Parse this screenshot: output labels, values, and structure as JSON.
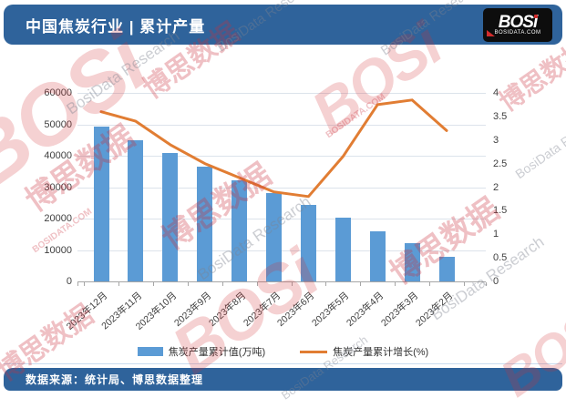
{
  "header": {
    "title": "中国焦炭行业 | 累计产量",
    "logo": {
      "text": "BOSi",
      "site": "BOSIDATA.COM"
    }
  },
  "footer": {
    "source": "数据来源：统计局、博思数据整理"
  },
  "watermarks": {
    "cn": "博思数据",
    "en": "BosiData Research",
    "logo": "BOSi",
    "site": "BOSIDATA.COM"
  },
  "chart_data": {
    "type": "bar",
    "title": "中国焦炭行业 | 累计产量",
    "categories": [
      "2023年12月",
      "2023年11月",
      "2023年10月",
      "2023年9月",
      "2023年8月",
      "2023年7月",
      "2023年6月",
      "2023年5月",
      "2023年4月",
      "2023年3月",
      "2023年2月"
    ],
    "series": [
      {
        "name": "焦炭产量累计值(万吨)",
        "type": "bar",
        "axis": "left",
        "color": "#5B9BD5",
        "values": [
          49300,
          45000,
          40900,
          36500,
          32300,
          28000,
          24300,
          20250,
          16100,
          12150,
          7850
        ]
      },
      {
        "name": "焦炭产量累计增长(%)",
        "type": "line",
        "axis": "right",
        "color": "#E17D33",
        "values": [
          3.6,
          3.4,
          2.9,
          2.5,
          2.2,
          1.9,
          1.8,
          2.65,
          3.75,
          3.85,
          3.2
        ]
      }
    ],
    "left_axis": {
      "min": 0,
      "max": 60000,
      "step": 10000,
      "ticks": [
        "0",
        "10000",
        "20000",
        "30000",
        "40000",
        "50000",
        "60000"
      ]
    },
    "right_axis": {
      "min": 0,
      "max": 4,
      "step": 0.5,
      "ticks": [
        "0",
        "0.5",
        "1",
        "1.5",
        "2",
        "2.5",
        "3",
        "3.5",
        "4"
      ]
    },
    "grid": true,
    "legend_position": "bottom"
  },
  "colors": {
    "header_bg": "#2F639B",
    "bar": "#5B9BD5",
    "line": "#E17D33",
    "grid": "#DCE3EB",
    "axis": "#A6A6A6",
    "watermark_red": "#C9303A",
    "watermark_gray": "#7D838F"
  }
}
